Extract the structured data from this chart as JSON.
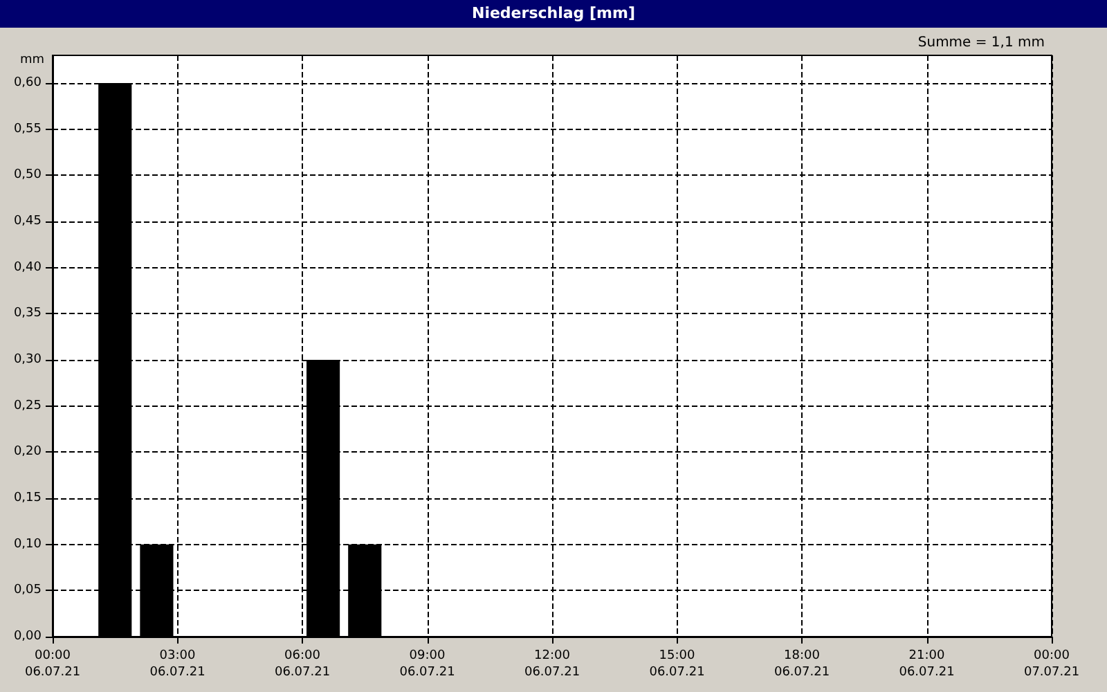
{
  "chart_data": {
    "type": "bar",
    "title": "Niederschlag [mm]",
    "ylabel": "mm",
    "annotations": [
      "Summe = 1,1 mm"
    ],
    "x": [
      "--07-06T01:30",
      "--07-06T02:30",
      "--07-06T06:30",
      "--07-06T07:30"
    ],
    "values": [
      0.6,
      0.1,
      0.3,
      0.1
    ],
    "color": "#000000",
    "xlim": [
      "--07-06T00:00",
      "--07-07T00:00"
    ],
    "xticks": [
      {
        "value": "--07-06T00:00",
        "label": "00:00\n06.07.21"
      },
      {
        "value": "--07-06T03:00",
        "label": "03:00\n06.07.21"
      },
      {
        "value": "--07-06T06:00",
        "label": "06:00\n06.07.21"
      },
      {
        "value": "--07-06T09:00",
        "label": "09:00\n06.07.21"
      },
      {
        "value": "--07-06T12:00",
        "label": "12:00\n06.07.21"
      },
      {
        "value": "--07-06T15:00",
        "label": "15:00\n06.07.21"
      },
      {
        "value": "--07-06T18:00",
        "label": "18:00\n06.07.21"
      },
      {
        "value": "--07-06T21:00",
        "label": "21:00\n06.07.21"
      },
      {
        "value": "--07-07T00:00",
        "label": "00:00\n07.07.21"
      }
    ],
    "ylim": [
      0,
      0.63
    ],
    "yticks": [
      {
        "value": 0,
        "label": "0,00"
      },
      {
        "value": 0.05,
        "label": "0,05"
      },
      {
        "value": 0.1,
        "label": "0,10"
      },
      {
        "value": 0.15,
        "label": "0,15"
      },
      {
        "value": 0.2,
        "label": "0,20"
      },
      {
        "value": 0.25,
        "label": "0,25"
      },
      {
        "value": 0.3,
        "label": "0,30"
      },
      {
        "value": 0.35,
        "label": "0,35"
      },
      {
        "value": 0.4,
        "label": "0,40"
      },
      {
        "value": 0.45,
        "label": "0,45"
      },
      {
        "value": 0.5,
        "label": "0,50"
      },
      {
        "value": 0.55,
        "label": "0,55"
      },
      {
        "value": 0.6,
        "label": "0,60"
      }
    ],
    "grid": true
  }
}
